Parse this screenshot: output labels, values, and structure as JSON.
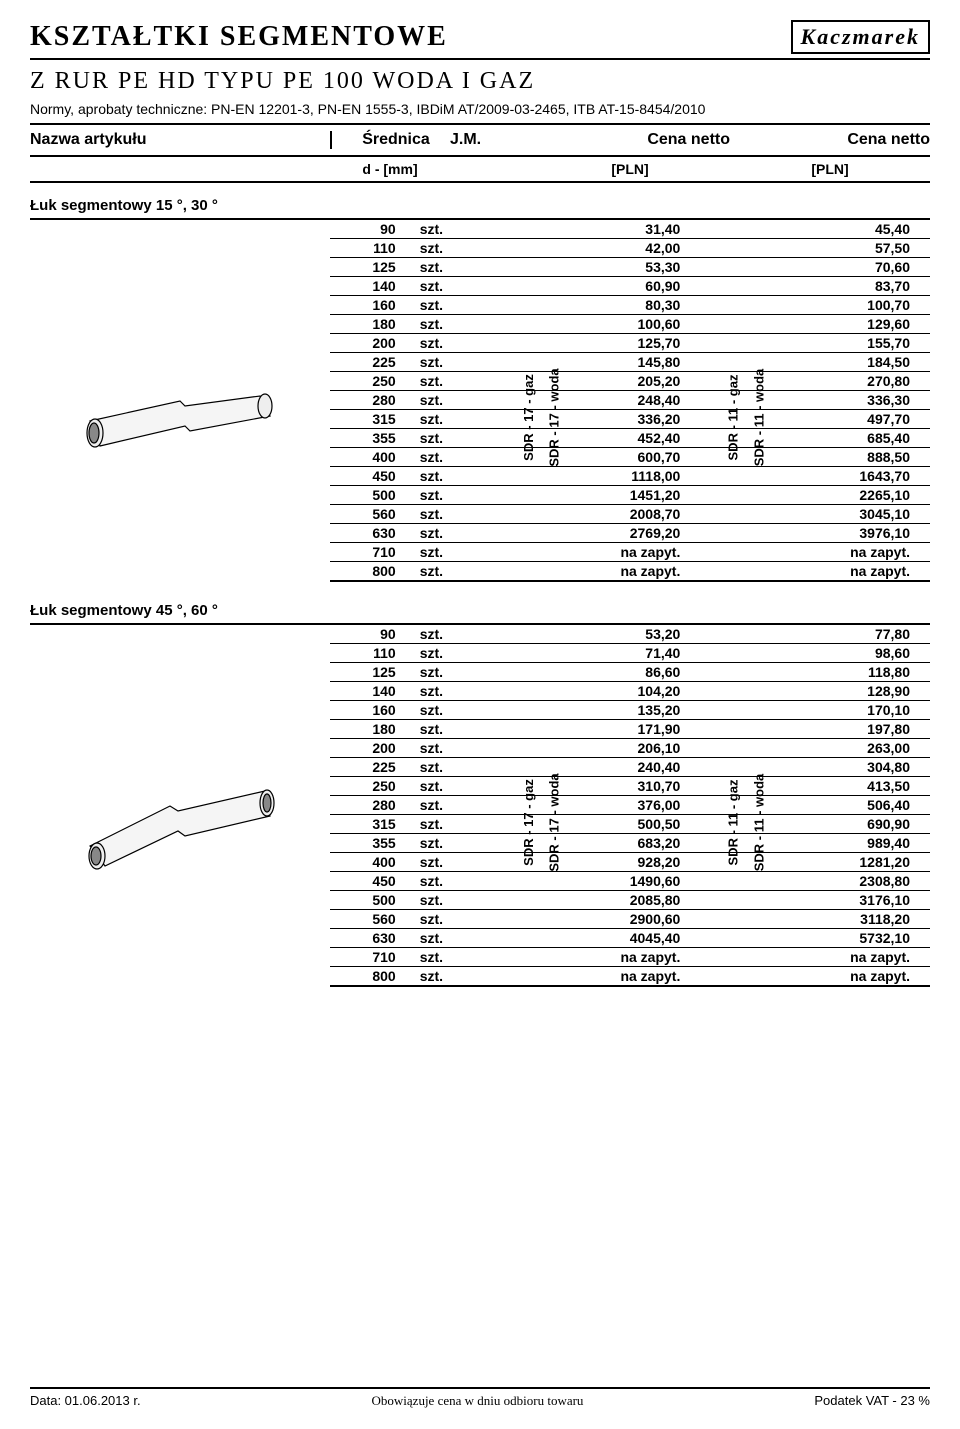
{
  "page": {
    "title": "KSZTAŁTKI  SEGMENTOWE",
    "logo": "Kaczmarek",
    "subtitle": "Z  RUR  PE HD  TYPU  PE 100  WODA  I  GAZ",
    "norms": "Normy, aprobaty techniczne: PN-EN 12201-3, PN-EN 1555-3, IBDiM AT/2009-03-2465, ITB AT-15-8454/2010"
  },
  "header": {
    "name": "Nazwa artykułu",
    "diameter": "Średnica",
    "jm": "J.M.",
    "price1": "Cena netto",
    "price2": "Cena netto",
    "sub_d": "d - [mm]",
    "sub_p1": "[PLN]",
    "sub_p2": "[PLN]"
  },
  "rot_labels": {
    "l1": "SDR - 17    - gaz",
    "l2": "SDR - 17   - woda",
    "l3": "SDR - 11    - gaz",
    "l4": "SDR - 11   - woda"
  },
  "section1": {
    "title": "Łuk  segmentowy  15 °, 30 °",
    "rows": [
      {
        "d": "90",
        "u": "szt.",
        "p1": "31,40",
        "p2": "45,40"
      },
      {
        "d": "110",
        "u": "szt.",
        "p1": "42,00",
        "p2": "57,50"
      },
      {
        "d": "125",
        "u": "szt.",
        "p1": "53,30",
        "p2": "70,60"
      },
      {
        "d": "140",
        "u": "szt.",
        "p1": "60,90",
        "p2": "83,70"
      },
      {
        "d": "160",
        "u": "szt.",
        "p1": "80,30",
        "p2": "100,70"
      },
      {
        "d": "180",
        "u": "szt.",
        "p1": "100,60",
        "p2": "129,60"
      },
      {
        "d": "200",
        "u": "szt.",
        "p1": "125,70",
        "p2": "155,70"
      },
      {
        "d": "225",
        "u": "szt.",
        "p1": "145,80",
        "p2": "184,50"
      },
      {
        "d": "250",
        "u": "szt.",
        "p1": "205,20",
        "p2": "270,80"
      },
      {
        "d": "280",
        "u": "szt.",
        "p1": "248,40",
        "p2": "336,30"
      },
      {
        "d": "315",
        "u": "szt.",
        "p1": "336,20",
        "p2": "497,70"
      },
      {
        "d": "355",
        "u": "szt.",
        "p1": "452,40",
        "p2": "685,40"
      },
      {
        "d": "400",
        "u": "szt.",
        "p1": "600,70",
        "p2": "888,50"
      },
      {
        "d": "450",
        "u": "szt.",
        "p1": "1118,00",
        "p2": "1643,70"
      },
      {
        "d": "500",
        "u": "szt.",
        "p1": "1451,20",
        "p2": "2265,10"
      },
      {
        "d": "560",
        "u": "szt.",
        "p1": "2008,70",
        "p2": "3045,10"
      },
      {
        "d": "630",
        "u": "szt.",
        "p1": "2769,20",
        "p2": "3976,10"
      },
      {
        "d": "710",
        "u": "szt.",
        "p1": "na zapyt.",
        "p2": "na zapyt."
      },
      {
        "d": "800",
        "u": "szt.",
        "p1": "na zapyt.",
        "p2": "na zapyt."
      }
    ]
  },
  "section2": {
    "title": "Łuk  segmentowy  45 °, 60 °",
    "rows": [
      {
        "d": "90",
        "u": "szt.",
        "p1": "53,20",
        "p2": "77,80"
      },
      {
        "d": "110",
        "u": "szt.",
        "p1": "71,40",
        "p2": "98,60"
      },
      {
        "d": "125",
        "u": "szt.",
        "p1": "86,60",
        "p2": "118,80"
      },
      {
        "d": "140",
        "u": "szt.",
        "p1": "104,20",
        "p2": "128,90"
      },
      {
        "d": "160",
        "u": "szt.",
        "p1": "135,20",
        "p2": "170,10"
      },
      {
        "d": "180",
        "u": "szt.",
        "p1": "171,90",
        "p2": "197,80"
      },
      {
        "d": "200",
        "u": "szt.",
        "p1": "206,10",
        "p2": "263,00"
      },
      {
        "d": "225",
        "u": "szt.",
        "p1": "240,40",
        "p2": "304,80"
      },
      {
        "d": "250",
        "u": "szt.",
        "p1": "310,70",
        "p2": "413,50"
      },
      {
        "d": "280",
        "u": "szt.",
        "p1": "376,00",
        "p2": "506,40"
      },
      {
        "d": "315",
        "u": "szt.",
        "p1": "500,50",
        "p2": "690,90"
      },
      {
        "d": "355",
        "u": "szt.",
        "p1": "683,20",
        "p2": "989,40"
      },
      {
        "d": "400",
        "u": "szt.",
        "p1": "928,20",
        "p2": "1281,20"
      },
      {
        "d": "450",
        "u": "szt.",
        "p1": "1490,60",
        "p2": "2308,80"
      },
      {
        "d": "500",
        "u": "szt.",
        "p1": "2085,80",
        "p2": "3176,10"
      },
      {
        "d": "560",
        "u": "szt.",
        "p1": "2900,60",
        "p2": "3118,20"
      },
      {
        "d": "630",
        "u": "szt.",
        "p1": "4045,40",
        "p2": "5732,10"
      },
      {
        "d": "710",
        "u": "szt.",
        "p1": "na zapyt.",
        "p2": "na zapyt."
      },
      {
        "d": "800",
        "u": "szt.",
        "p1": "na zapyt.",
        "p2": "na zapyt."
      }
    ]
  },
  "footer": {
    "date": "Data: 01.06.2013 r.",
    "center": "Obowiązuje  cena  w  dniu  odbioru  towaru",
    "vat": "Podatek  VAT - 23 %"
  }
}
